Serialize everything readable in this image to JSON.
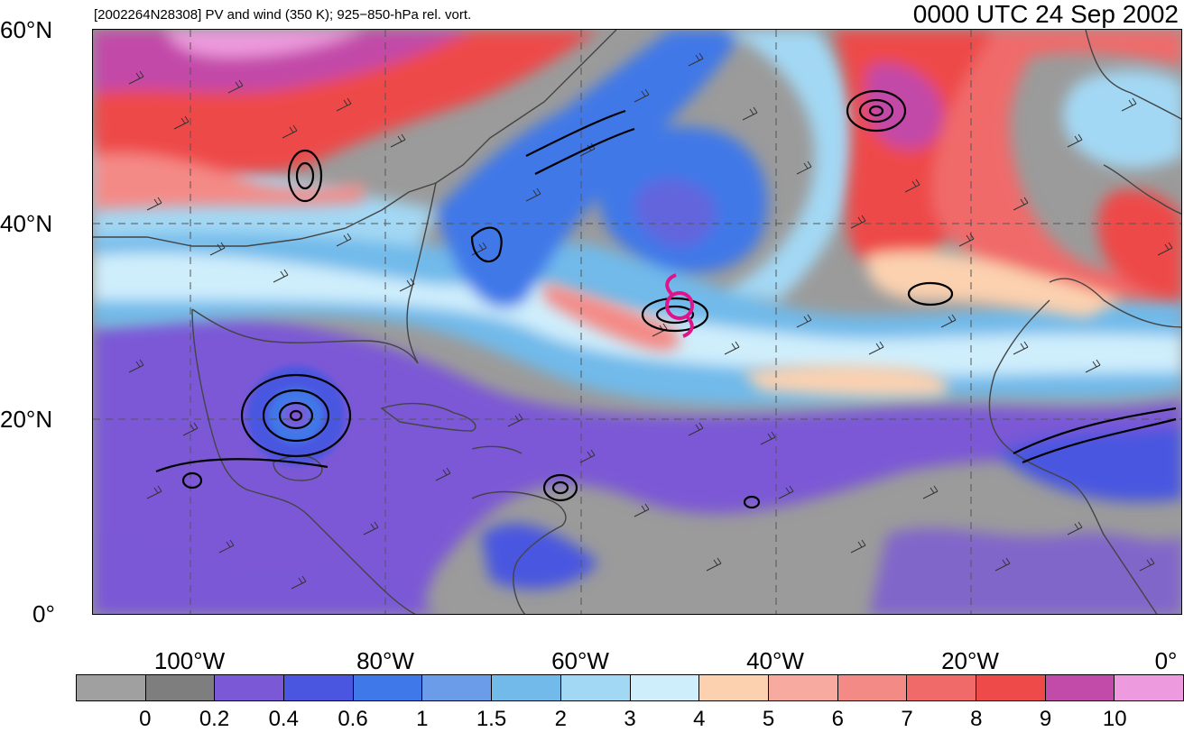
{
  "header": {
    "title_left": "[2002264N28308] PV and wind (350 K); 925−850-hPa rel. vort.",
    "title_right": "0000 UTC 24 Sep 2002"
  },
  "map": {
    "lat_labels": [
      "60°N",
      "40°N",
      "20°N",
      "0°"
    ],
    "lon_labels": [
      "100°W",
      "80°W",
      "60°W",
      "40°W",
      "20°W",
      "0°"
    ],
    "storm_marker_color": "#e0148a"
  },
  "colorbar": {
    "colors": [
      "#a0a0a0",
      "#7e7e7e",
      "#7b58d6",
      "#4a56e0",
      "#3f78e8",
      "#6a9cea",
      "#71baea",
      "#a3d8f4",
      "#cfeefc",
      "#fbd1b0",
      "#f7aaa0",
      "#f48a86",
      "#f06a6a",
      "#ee4a4a",
      "#c24aa8",
      "#ee9ade"
    ],
    "labels": [
      "0",
      "0.2",
      "0.4",
      "0.6",
      "1",
      "1.5",
      "2",
      "3",
      "4",
      "5",
      "6",
      "7",
      "8",
      "9",
      "10"
    ]
  }
}
